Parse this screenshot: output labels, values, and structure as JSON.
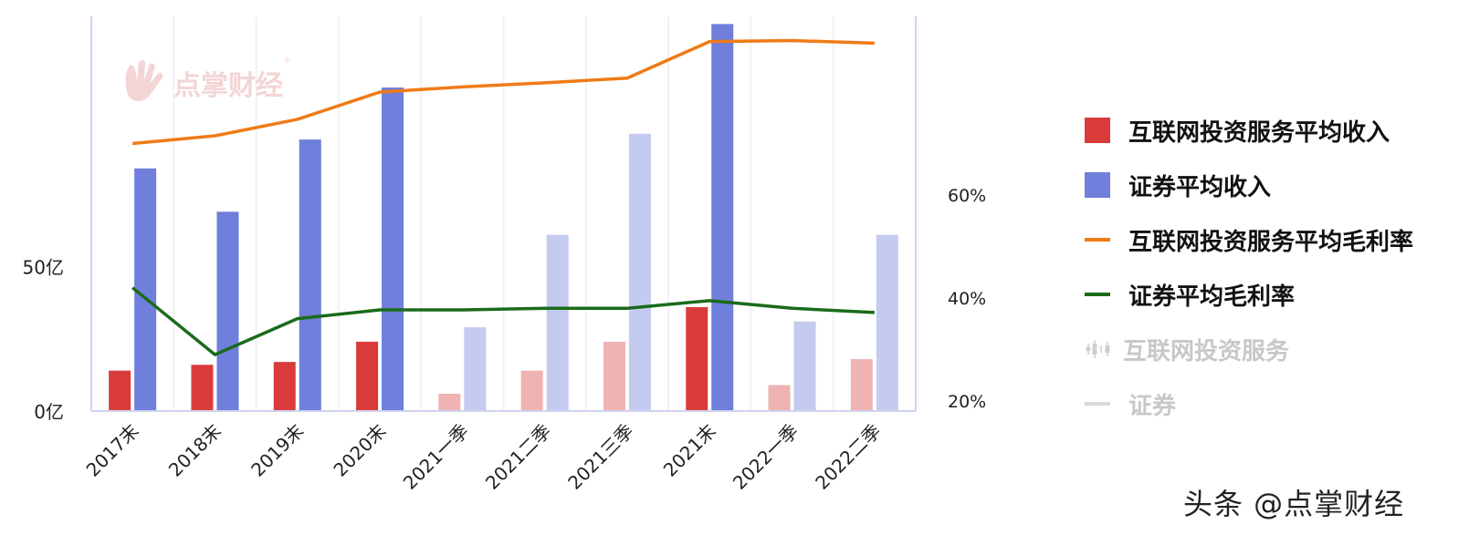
{
  "chart_data": {
    "type": "bar",
    "categories": [
      "2017末",
      "2018末",
      "2019末",
      "2020末",
      "2021一季",
      "2021二季",
      "2021三季",
      "2021末",
      "2022一季",
      "2022二季"
    ],
    "highlighted": [
      true,
      true,
      true,
      true,
      false,
      false,
      false,
      true,
      false,
      false
    ],
    "series": [
      {
        "name": "互联网投资服务平均收入",
        "kind": "bar",
        "axis": "left",
        "color": "#d93b3b",
        "faded_color": "#efb3b3",
        "values": [
          14,
          16,
          17,
          24,
          6,
          14,
          24,
          36,
          9,
          18
        ]
      },
      {
        "name": "证券平均收入",
        "kind": "bar",
        "axis": "left",
        "color": "#6f7fdb",
        "faded_color": "#c5cbf0",
        "values": [
          84,
          69,
          94,
          112,
          29,
          61,
          96,
          134,
          31,
          61
        ]
      },
      {
        "name": "互联网投资服务平均毛利率",
        "kind": "line",
        "axis": "right",
        "color": "#ef7b16",
        "values": [
          0.7,
          0.715,
          0.747,
          0.8,
          0.81,
          0.818,
          0.827,
          0.898,
          0.9,
          0.895
        ]
      },
      {
        "name": "证券平均毛利率",
        "kind": "line",
        "axis": "right",
        "color": "#1a6b1a",
        "values": [
          0.42,
          0.29,
          0.36,
          0.377,
          0.377,
          0.38,
          0.38,
          0.395,
          0.38,
          0.372
        ]
      }
    ],
    "y_left": {
      "ticks": [
        0,
        50
      ],
      "tick_labels": [
        "0亿",
        "50亿"
      ],
      "range": [
        0,
        136
      ]
    },
    "y_right": {
      "ticks": [
        0.2,
        0.4,
        0.6
      ],
      "tick_labels": [
        "20%",
        "40%",
        "60%"
      ],
      "range": [
        0.2,
        0.9
      ]
    },
    "title": "",
    "xlabel": "",
    "ylabel": "",
    "grid": true,
    "legend_position": "right"
  },
  "legend": [
    {
      "label": "互联网投资服务平均收入",
      "kind": "bar",
      "color": "#d93b3b",
      "dim": false
    },
    {
      "label": "证券平均收入",
      "kind": "bar",
      "color": "#6f7fdb",
      "dim": false
    },
    {
      "label": "互联网投资服务平均毛利率",
      "kind": "line",
      "color": "#ef7b16",
      "dim": false
    },
    {
      "label": "证券平均毛利率",
      "kind": "line",
      "color": "#1a6b1a",
      "dim": false
    },
    {
      "label": "互联网投资服务",
      "kind": "candle",
      "color": "#cfcfcf",
      "dim": true
    },
    {
      "label": "证券",
      "kind": "line",
      "color": "#d9d9d9",
      "dim": true
    }
  ],
  "watermark": {
    "text": "点掌财经",
    "mark": "®"
  },
  "footer": {
    "text": "头条 @点掌财经"
  }
}
